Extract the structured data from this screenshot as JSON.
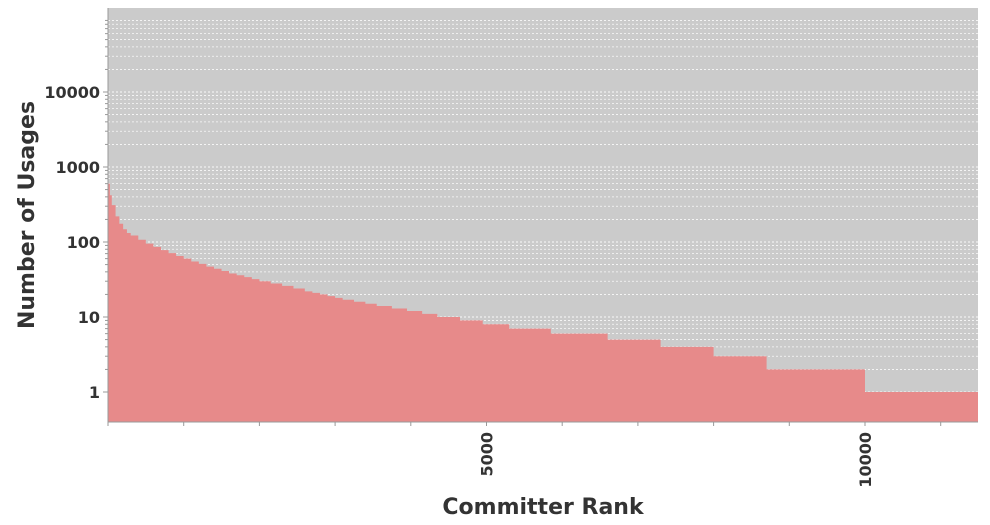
{
  "chart_data": {
    "type": "area",
    "xlabel": "Committer Rank",
    "ylabel": "Number of Usages",
    "y_scale": "log",
    "ylim": [
      0.5,
      10000
    ],
    "xlim": [
      0,
      11500
    ],
    "grid": true,
    "y_ticks": [
      {
        "value": 1,
        "label": "1"
      },
      {
        "value": 10,
        "label": "10"
      },
      {
        "value": 100,
        "label": "100"
      },
      {
        "value": 1000,
        "label": "1000"
      },
      {
        "value": 10000,
        "label": "10000"
      }
    ],
    "x_ticks": [
      {
        "value": 5000,
        "label": "5000"
      },
      {
        "value": 10000,
        "label": "10000"
      }
    ],
    "x_minor_ticks": [
      0,
      1000,
      2000,
      3000,
      4000,
      5000,
      6000,
      7000,
      8000,
      9000,
      10000,
      11000
    ],
    "series": [
      {
        "fill_color": "#e78a8a",
        "points": [
          [
            0,
            600
          ],
          [
            25,
            420
          ],
          [
            50,
            310
          ],
          [
            100,
            220
          ],
          [
            150,
            175
          ],
          [
            200,
            148
          ],
          [
            250,
            132
          ],
          [
            300,
            122
          ],
          [
            400,
            107
          ],
          [
            500,
            95
          ],
          [
            600,
            86
          ],
          [
            700,
            78
          ],
          [
            800,
            71
          ],
          [
            900,
            65
          ],
          [
            1000,
            60
          ],
          [
            1100,
            55
          ],
          [
            1200,
            51
          ],
          [
            1300,
            47
          ],
          [
            1400,
            44
          ],
          [
            1500,
            41
          ],
          [
            1600,
            38
          ],
          [
            1700,
            36
          ],
          [
            1800,
            34
          ],
          [
            1900,
            32
          ],
          [
            2000,
            30
          ],
          [
            2150,
            28
          ],
          [
            2300,
            26
          ],
          [
            2450,
            24
          ],
          [
            2600,
            22
          ],
          [
            2700,
            21
          ],
          [
            2800,
            20
          ],
          [
            2900,
            19
          ],
          [
            3000,
            18
          ],
          [
            3100,
            17
          ],
          [
            3250,
            16
          ],
          [
            3400,
            15
          ],
          [
            3550,
            14
          ],
          [
            3750,
            13
          ],
          [
            3950,
            12
          ],
          [
            4150,
            11
          ],
          [
            4350,
            10
          ],
          [
            4650,
            9
          ],
          [
            4950,
            8
          ],
          [
            5300,
            7
          ],
          [
            5850,
            6
          ],
          [
            6600,
            5
          ],
          [
            7300,
            4
          ],
          [
            8000,
            3
          ],
          [
            8700,
            2
          ],
          [
            10000,
            1
          ],
          [
            11500,
            1
          ]
        ]
      }
    ]
  }
}
